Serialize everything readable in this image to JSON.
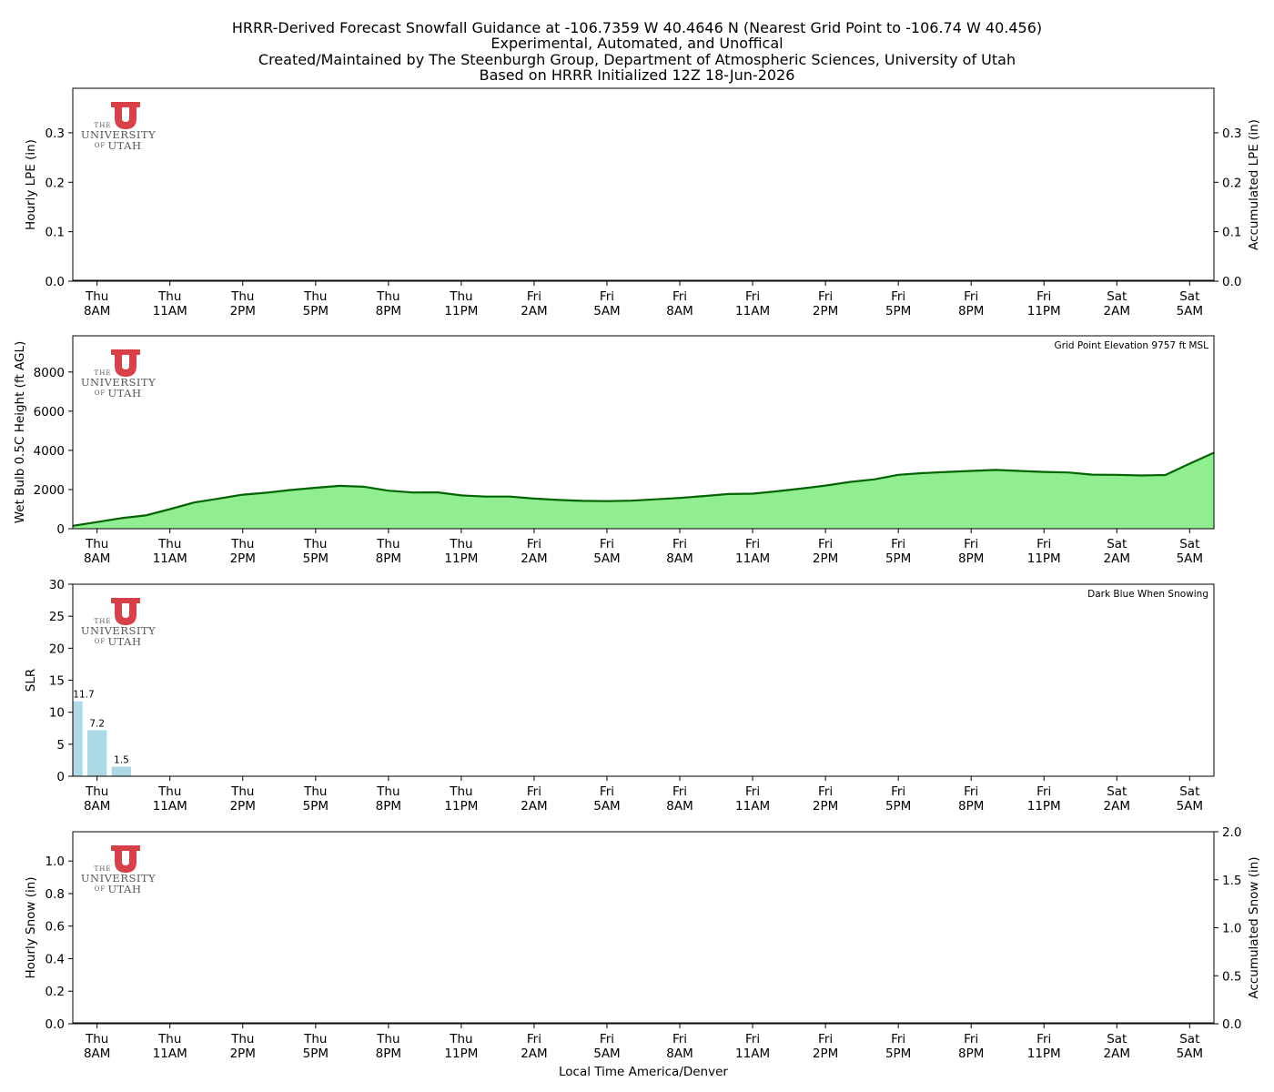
{
  "title_lines": [
    "HRRR-Derived Forecast Snowfall Guidance at -106.7359 W 40.4646 N (Nearest Grid Point to -106.74 W 40.456)",
    "Experimental, Automated, and Unoffical",
    "Created/Maintained by The Steenburgh Group, Department of Atmospheric Sciences, University of Utah",
    "Based on HRRR Initialized 12Z 18-Jun-2026"
  ],
  "logo": {
    "top": "THE",
    "middle": "UNIVERSITY",
    "bottom_small": "OF",
    "bottom": "UTAH",
    "color": "#d9414a"
  },
  "x_axis": {
    "label": "Local Time America/Denver",
    "ticks": [
      {
        "hour": 1,
        "day": "Thu",
        "time": "8AM"
      },
      {
        "hour": 4,
        "day": "Thu",
        "time": "11AM"
      },
      {
        "hour": 7,
        "day": "Thu",
        "time": "2PM"
      },
      {
        "hour": 10,
        "day": "Thu",
        "time": "5PM"
      },
      {
        "hour": 13,
        "day": "Thu",
        "time": "8PM"
      },
      {
        "hour": 16,
        "day": "Thu",
        "time": "11PM"
      },
      {
        "hour": 19,
        "day": "Fri",
        "time": "2AM"
      },
      {
        "hour": 22,
        "day": "Fri",
        "time": "5AM"
      },
      {
        "hour": 25,
        "day": "Fri",
        "time": "8AM"
      },
      {
        "hour": 28,
        "day": "Fri",
        "time": "11AM"
      },
      {
        "hour": 31,
        "day": "Fri",
        "time": "2PM"
      },
      {
        "hour": 34,
        "day": "Fri",
        "time": "5PM"
      },
      {
        "hour": 37,
        "day": "Fri",
        "time": "8PM"
      },
      {
        "hour": 40,
        "day": "Fri",
        "time": "11PM"
      },
      {
        "hour": 43,
        "day": "Sat",
        "time": "2AM"
      },
      {
        "hour": 46,
        "day": "Sat",
        "time": "5AM"
      }
    ],
    "xlim": [
      0,
      47
    ]
  },
  "chart_data": [
    {
      "type": "bar",
      "panel": "lpe",
      "ylabel": "Hourly LPE (in)",
      "ylabel_right": "Accumulated LPE (in)",
      "ylim": [
        0,
        0.39
      ],
      "yticks": [
        0.0,
        0.1,
        0.2,
        0.3
      ],
      "y2lim": [
        0,
        0.39
      ],
      "y2ticks": [
        0.0,
        0.1,
        0.2,
        0.3
      ],
      "values": [],
      "accumulated": {
        "x": [
          0,
          47
        ],
        "y": [
          0,
          0
        ]
      },
      "tick_labels_left": [
        "0.0",
        "0.1",
        "0.2",
        "0.3"
      ],
      "tick_labels_right": [
        "0.0",
        "0.1",
        "0.2",
        "0.3"
      ]
    },
    {
      "type": "area",
      "panel": "wetbulb",
      "ylabel": "Wet Bulb 0.5C Height (ft AGL)",
      "annotation": "Grid Point Elevation 9757 ft MSL",
      "ylim": [
        0,
        9850
      ],
      "yticks": [
        0,
        2000,
        4000,
        6000,
        8000
      ],
      "tick_labels_left": [
        "0",
        "2000",
        "4000",
        "6000",
        "8000"
      ],
      "x": [
        0,
        1,
        2,
        3,
        4,
        5,
        6,
        7,
        8,
        9,
        10,
        11,
        12,
        13,
        14,
        15,
        16,
        17,
        18,
        19,
        20,
        21,
        22,
        23,
        24,
        25,
        26,
        27,
        28,
        29,
        30,
        31,
        32,
        33,
        34,
        35,
        36,
        37,
        38,
        39,
        40,
        41,
        42,
        43,
        44,
        45,
        46,
        47
      ],
      "y": [
        150,
        340,
        540,
        680,
        1000,
        1340,
        1540,
        1740,
        1840,
        1980,
        2090,
        2190,
        2140,
        1940,
        1850,
        1860,
        1700,
        1640,
        1640,
        1540,
        1470,
        1420,
        1410,
        1430,
        1500,
        1570,
        1670,
        1770,
        1790,
        1910,
        2050,
        2200,
        2390,
        2520,
        2750,
        2840,
        2900,
        2950,
        3000,
        2950,
        2900,
        2870,
        2760,
        2750,
        2720,
        2740,
        3320,
        3880
      ],
      "fill": "#90ee90",
      "stroke": "#006400"
    },
    {
      "type": "bar",
      "panel": "slr",
      "ylabel": "SLR",
      "annotation": "Dark Blue When Snowing",
      "ylim": [
        0,
        30
      ],
      "yticks": [
        0,
        5,
        10,
        15,
        20,
        25,
        30
      ],
      "tick_labels_left": [
        "0",
        "5",
        "10",
        "15",
        "20",
        "25",
        "30"
      ],
      "x": [
        0,
        1,
        2
      ],
      "values": [
        11.7,
        7.2,
        1.5
      ],
      "labels": [
        "11.7",
        "7.2",
        "1.5"
      ],
      "color": "#add8e6"
    },
    {
      "type": "bar",
      "panel": "snow",
      "ylabel": "Hourly Snow (in)",
      "ylabel_right": "Accumulated Snow (in)",
      "ylim": [
        0,
        1.18
      ],
      "yticks": [
        0.0,
        0.2,
        0.4,
        0.6,
        0.8,
        1.0
      ],
      "tick_labels_left": [
        "0.0",
        "0.2",
        "0.4",
        "0.6",
        "0.8",
        "1.0"
      ],
      "y2lim": [
        0,
        2.0
      ],
      "y2ticks": [
        0.0,
        0.5,
        1.0,
        1.5,
        2.0
      ],
      "tick_labels_right": [
        "0.0",
        "0.5",
        "1.0",
        "1.5",
        "2.0"
      ],
      "values": [],
      "accumulated": {
        "x": [
          0,
          47
        ],
        "y": [
          0,
          0
        ]
      }
    }
  ]
}
